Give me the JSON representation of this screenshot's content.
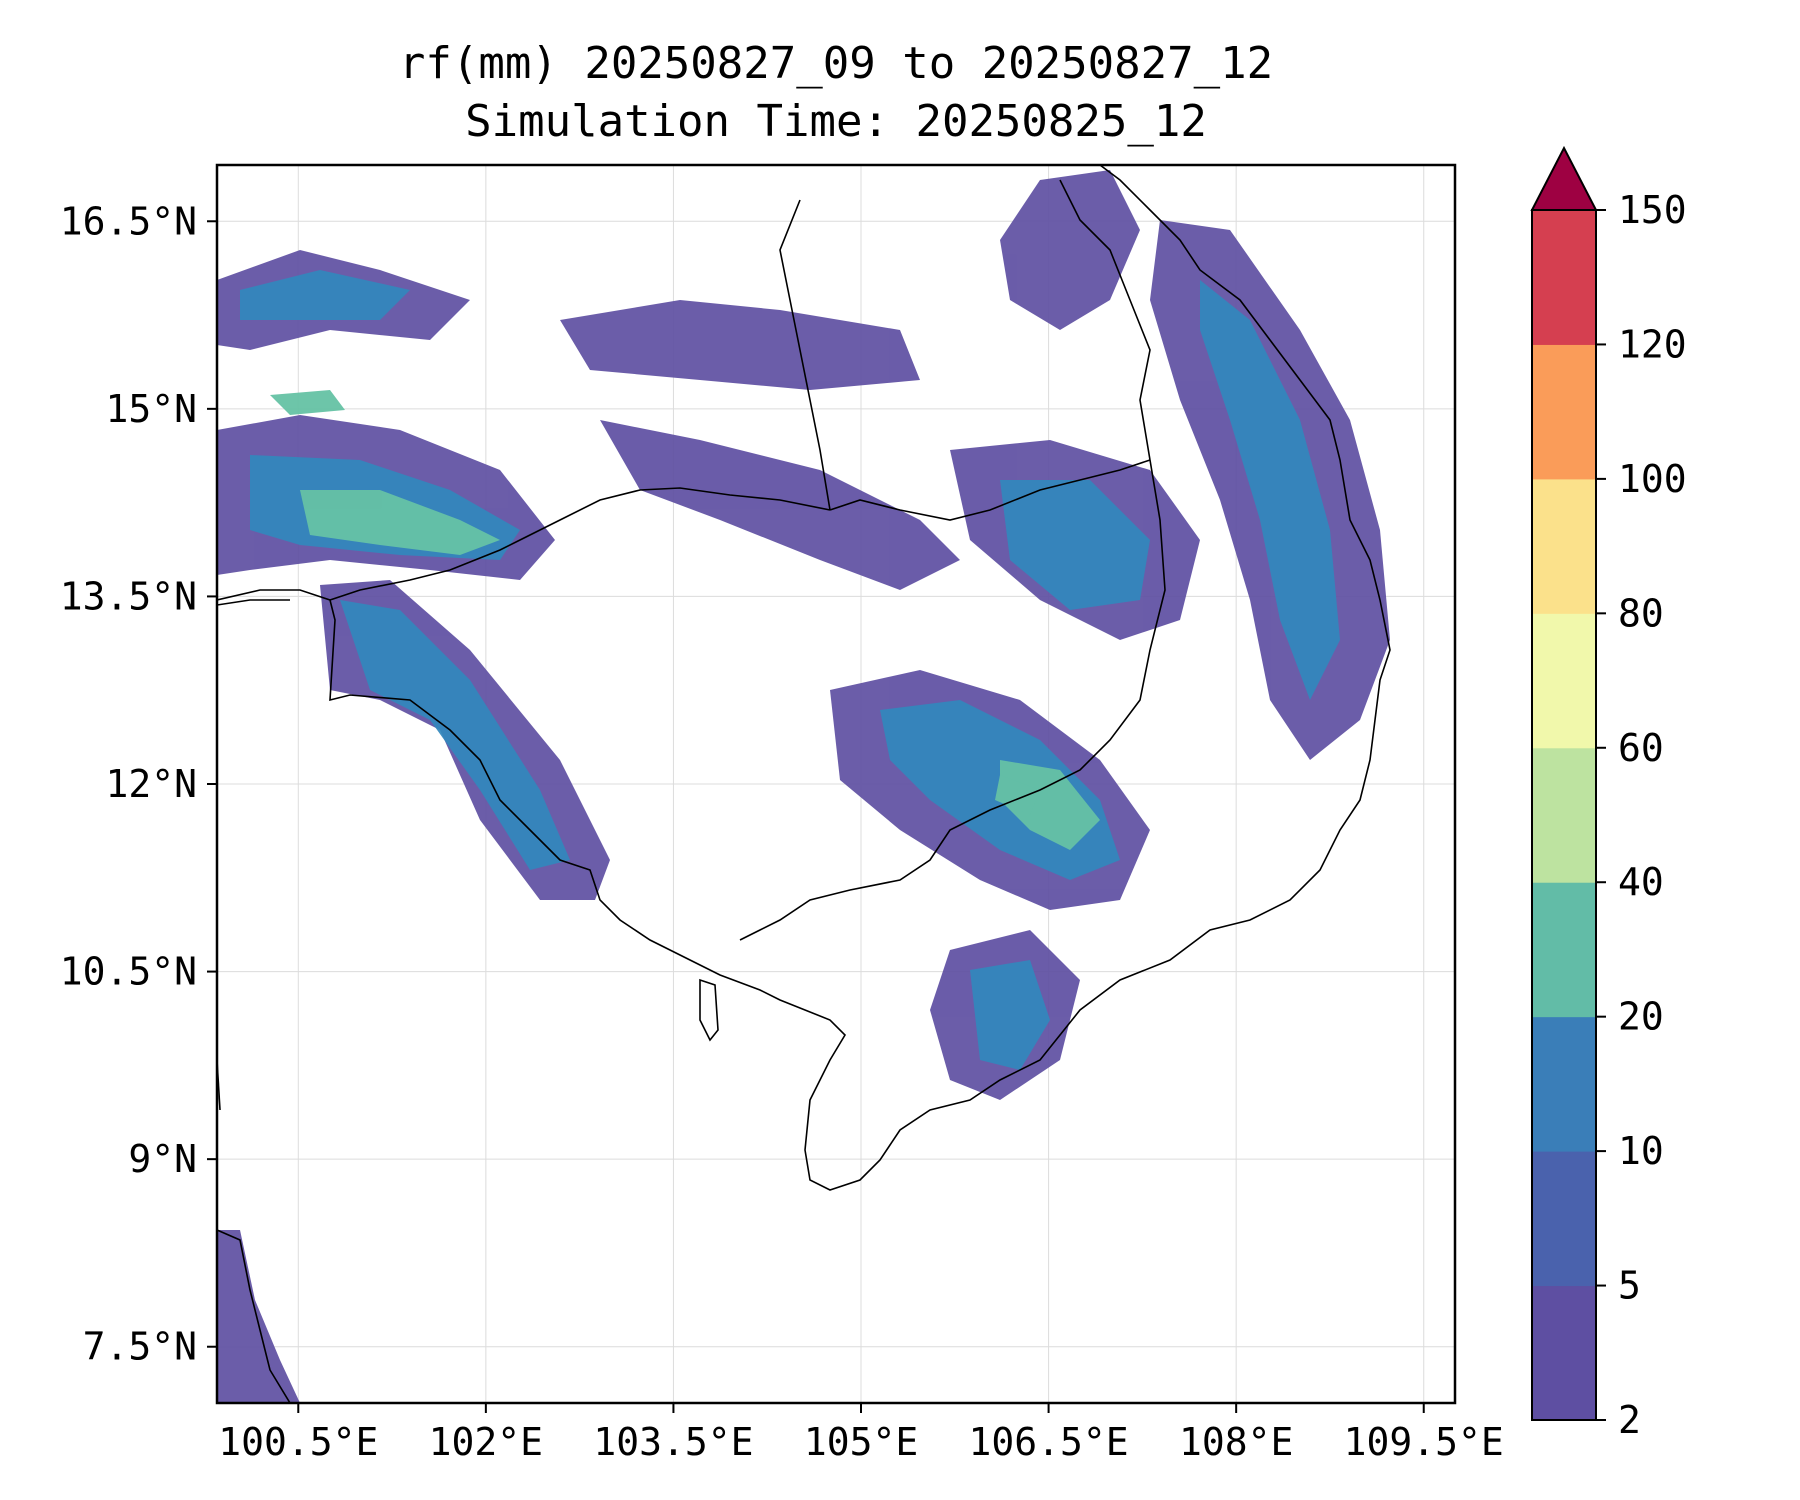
{
  "title": {
    "line1": "rf(mm) 20250827_09 to 20250827_12",
    "line2": "Simulation Time: 20250825_12"
  },
  "map": {
    "lon_range": [
      99.85,
      109.75
    ],
    "lat_range": [
      7.05,
      16.95
    ],
    "x_ticks": [
      {
        "value": 100.5,
        "label": "100.5°E"
      },
      {
        "value": 102.0,
        "label": "102°E"
      },
      {
        "value": 103.5,
        "label": "103.5°E"
      },
      {
        "value": 105.0,
        "label": "105°E"
      },
      {
        "value": 106.5,
        "label": "106.5°E"
      },
      {
        "value": 108.0,
        "label": "108°E"
      },
      {
        "value": 109.5,
        "label": "109.5°E"
      }
    ],
    "y_ticks": [
      {
        "value": 16.5,
        "label": "16.5°N"
      },
      {
        "value": 15.0,
        "label": "15°N"
      },
      {
        "value": 13.5,
        "label": "13.5°N"
      },
      {
        "value": 12.0,
        "label": "12°N"
      },
      {
        "value": 10.5,
        "label": "10.5°N"
      },
      {
        "value": 9.0,
        "label": "9°N"
      },
      {
        "value": 7.5,
        "label": "7.5°N"
      }
    ],
    "grid": true,
    "rain_color_low": "#5e4fa2",
    "rain_color_mid": "#3288bd",
    "rain_color_high": "#66c2a5"
  },
  "colorbar": {
    "levels": [
      {
        "label": "2",
        "color": "#5e4fa2"
      },
      {
        "label": "5",
        "color": "#4a62ad"
      },
      {
        "label": "10",
        "color": "#3a7eb8"
      },
      {
        "label": "20",
        "color": "#62bca7"
      },
      {
        "label": "40",
        "color": "#bde3a0"
      },
      {
        "label": "60",
        "color": "#f1f8ab"
      },
      {
        "label": "80",
        "color": "#fbe18b"
      },
      {
        "label": "100",
        "color": "#fa9c59"
      },
      {
        "label": "120",
        "color": "#d53f50"
      },
      {
        "label": "150",
        "color": ""
      }
    ],
    "extend_color": "#9e0142"
  }
}
